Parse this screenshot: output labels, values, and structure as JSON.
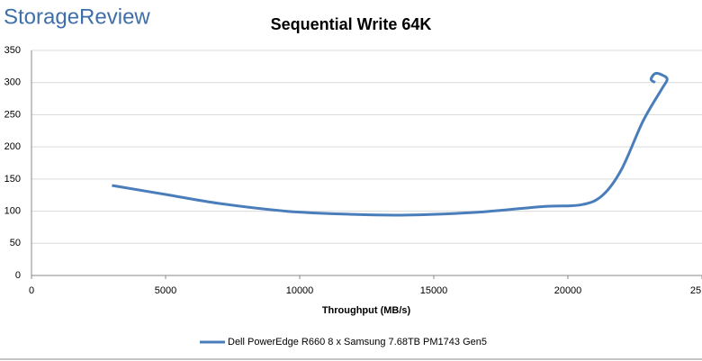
{
  "chart_data": {
    "type": "line",
    "brand": "StorageReview",
    "title": "Sequential Write 64K",
    "x_label": "Throughput (MB/s)",
    "series": [
      {
        "name": "Dell PowerEdge R660 8 x Samsung 7.68TB PM1743 Gen5",
        "color": "#4a7ebb",
        "x": [
          3000,
          5000,
          7000,
          9500,
          12000,
          14000,
          16500,
          19000,
          20500,
          21300,
          22000,
          22800,
          23500,
          23700,
          23500,
          23250,
          23100,
          23250
        ],
        "values": [
          140,
          126,
          112,
          100,
          95,
          94,
          98,
          107,
          110,
          125,
          165,
          240,
          290,
          305,
          312,
          314,
          305,
          300
        ]
      }
    ],
    "xlim": [
      0,
      25000
    ],
    "xticks": [
      0,
      5000,
      10000,
      15000,
      20000,
      {
        "value": 25000,
        "label": "25"
      }
    ],
    "ylim": [
      0,
      350
    ],
    "yticks": [
      0,
      50,
      100,
      150,
      200,
      250,
      300,
      350
    ],
    "grid": true,
    "legend": "bottom"
  }
}
